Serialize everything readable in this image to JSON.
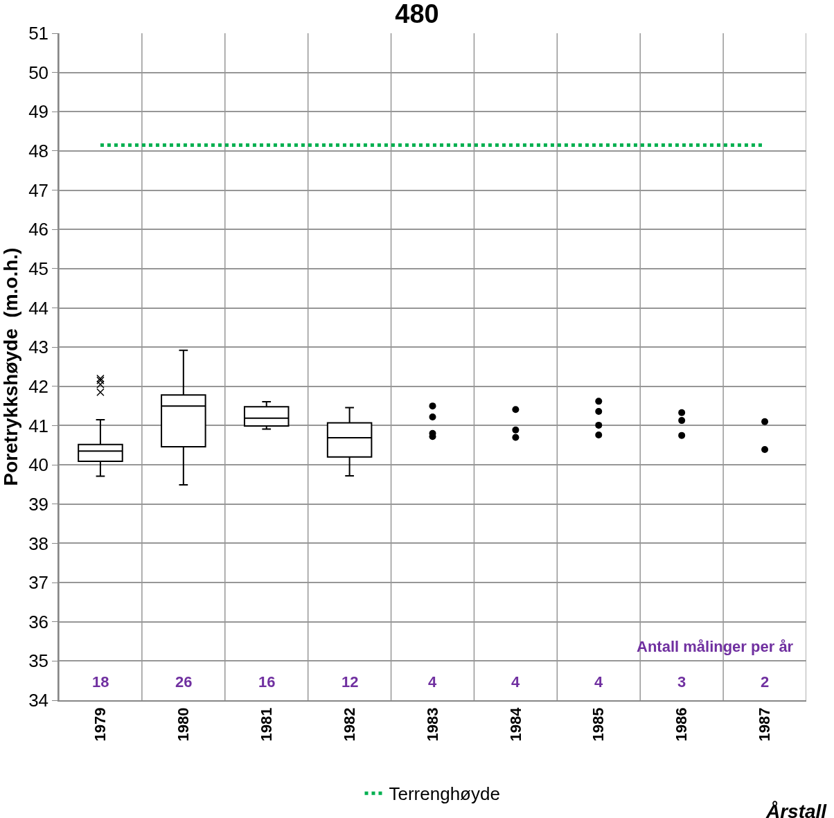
{
  "chart_data": {
    "type": "box",
    "title": "480",
    "xlabel": "Årstall",
    "ylabel": "Poretrykkshøyde  (m.o.h.)",
    "categories": [
      "1979",
      "1980",
      "1981",
      "1982",
      "1983",
      "1984",
      "1985",
      "1986",
      "1987"
    ],
    "ylim": [
      34,
      51
    ],
    "yticks": [
      34,
      35,
      36,
      37,
      38,
      39,
      40,
      41,
      42,
      43,
      44,
      45,
      46,
      47,
      48,
      49,
      50,
      51
    ],
    "grid": true,
    "legend": "bottom",
    "series": [
      {
        "color": "#000000",
        "boxes": [
          {
            "low": 39.71,
            "q1": 40.09,
            "median": 40.35,
            "q3": 40.52,
            "high": 41.15,
            "outliers": [
              42.2,
              42.15,
              42.05,
              41.85
            ]
          },
          {
            "low": 39.49,
            "q1": 40.46,
            "median": 41.5,
            "q3": 41.78,
            "high": 42.92
          },
          {
            "low": 40.91,
            "q1": 40.99,
            "median": 41.19,
            "q3": 41.48,
            "high": 41.61
          },
          {
            "low": 39.72,
            "q1": 40.2,
            "median": 40.69,
            "q3": 41.07,
            "high": 41.46
          },
          null,
          null,
          null,
          null,
          null
        ]
      },
      {
        "type": "scatter",
        "color": "#000000",
        "marker": "circle",
        "values": [
          null,
          null,
          null,
          null,
          41.5,
          41.41,
          41.62,
          41.33,
          41.1
        ]
      },
      {
        "type": "scatter",
        "color": "#000000",
        "marker": "circle",
        "values": [
          null,
          null,
          null,
          null,
          41.22,
          40.89,
          41.36,
          41.13,
          40.39
        ]
      },
      {
        "type": "scatter",
        "color": "#000000",
        "marker": "circle",
        "values": [
          null,
          null,
          null,
          null,
          40.8,
          40.7,
          41.01,
          40.75,
          null
        ]
      },
      {
        "type": "scatter",
        "color": "#000000",
        "marker": "circle",
        "values": [
          null,
          null,
          null,
          null,
          40.72,
          null,
          40.76,
          null,
          null
        ]
      },
      {
        "type": "line",
        "name": "Terrenghøyde",
        "color": "#00b050",
        "line_style": "dotted",
        "values": [
          48.15,
          48.15,
          48.15,
          48.15,
          48.15,
          48.15,
          48.15,
          48.15,
          48.15
        ]
      }
    ],
    "annotations": [
      "Antall målinger per år",
      "18",
      "26",
      "16",
      "12",
      "4",
      "4",
      "4",
      "3",
      "2"
    ]
  }
}
